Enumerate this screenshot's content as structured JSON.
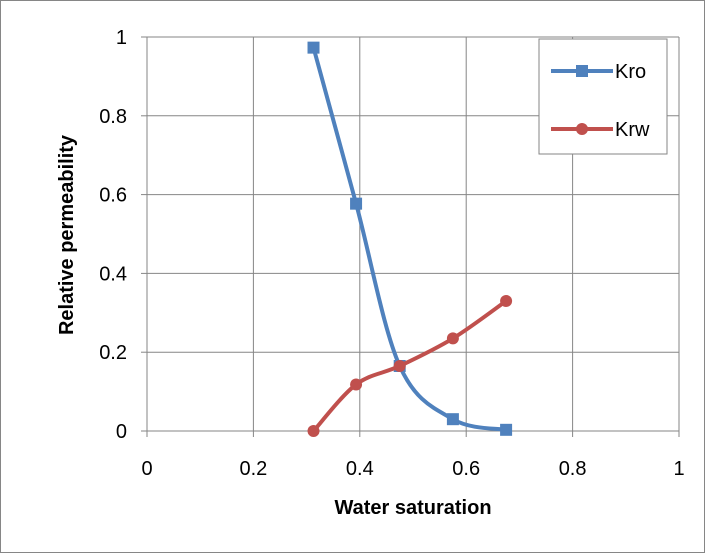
{
  "chart_data": {
    "type": "line",
    "title": "",
    "xlabel": "Water saturation",
    "ylabel": "Relative permeability",
    "xlim": [
      0,
      1
    ],
    "ylim": [
      0,
      1
    ],
    "x_ticks": [
      "0",
      "0.2",
      "0.4",
      "0.6",
      "0.8",
      "1"
    ],
    "y_ticks": [
      "0",
      "0.2",
      "0.4",
      "0.6",
      "0.8",
      "1"
    ],
    "x_tick_values": [
      0,
      0.2,
      0.4,
      0.6,
      0.8,
      1
    ],
    "y_tick_values": [
      0,
      0.2,
      0.4,
      0.6,
      0.8,
      1
    ],
    "grid": true,
    "smooth": true,
    "legend_position": "top-right",
    "series": [
      {
        "name": "Kro",
        "color": "#4F81BD",
        "marker": "square",
        "points": [
          {
            "x": 0.313,
            "y": 0.973
          },
          {
            "x": 0.393,
            "y": 0.577
          },
          {
            "x": 0.475,
            "y": 0.165
          },
          {
            "x": 0.575,
            "y": 0.03
          },
          {
            "x": 0.675,
            "y": 0.003
          }
        ]
      },
      {
        "name": "Krw",
        "color": "#C0504D",
        "marker": "circle",
        "points": [
          {
            "x": 0.313,
            "y": 0.0
          },
          {
            "x": 0.393,
            "y": 0.118
          },
          {
            "x": 0.475,
            "y": 0.165
          },
          {
            "x": 0.575,
            "y": 0.235
          },
          {
            "x": 0.675,
            "y": 0.33
          }
        ]
      }
    ]
  }
}
